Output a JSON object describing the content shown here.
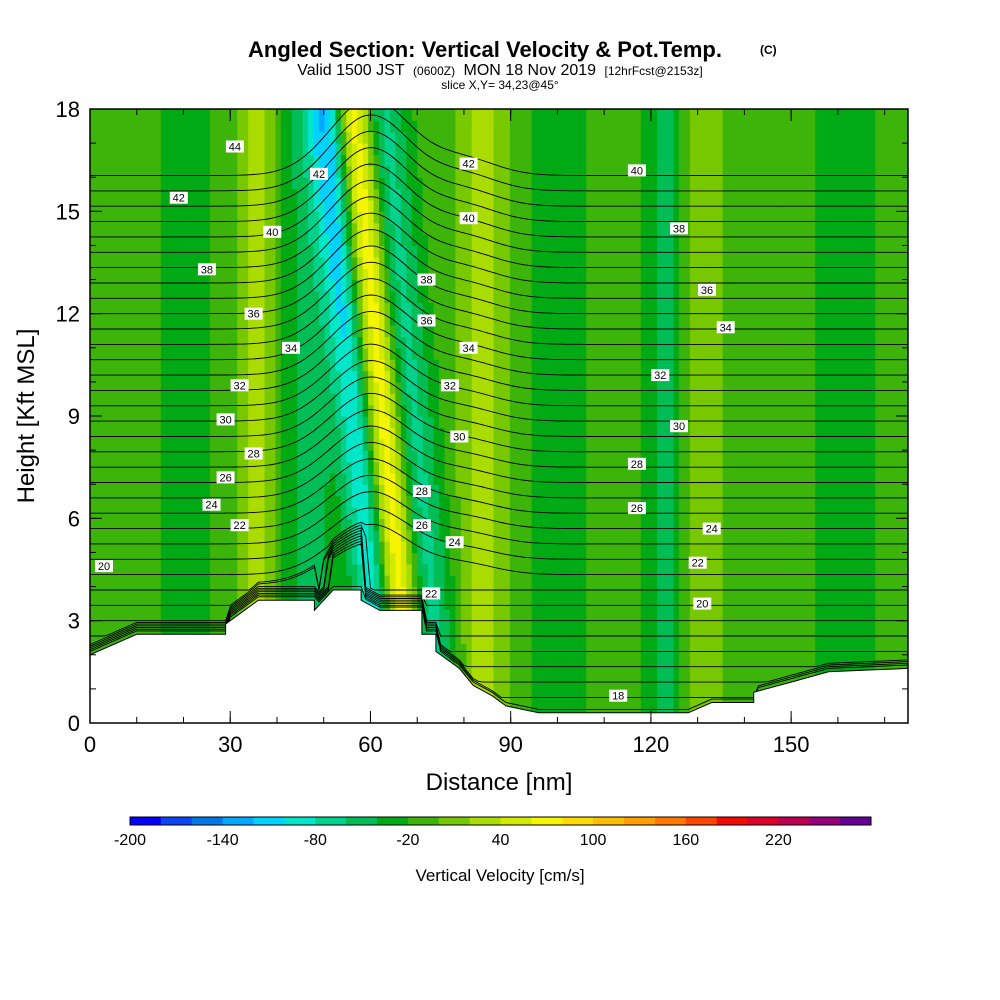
{
  "title": "Angled Section: Vertical Velocity & Pot.Temp.",
  "title_mark": "(C)",
  "subtitle_prefix": "Valid 1500 JST",
  "subtitle_z": "(0600Z)",
  "subtitle_main": "MON 18 Nov 2019",
  "subtitle_fcst": "[12hrFcst@2153z]",
  "slice_label": "slice X,Y= 34,23@45°",
  "chart_data": {
    "type": "heatmap",
    "xlabel": "Distance [nm]",
    "ylabel": "Height [Kft MSL]",
    "xlim": [
      0,
      175
    ],
    "ylim": [
      0,
      18
    ],
    "x_ticks": [
      "0",
      "30",
      "60",
      "90",
      "120",
      "150"
    ],
    "y_ticks": [
      "0",
      "3",
      "6",
      "9",
      "12",
      "15",
      "18"
    ],
    "grid": false,
    "colorbar": {
      "label": "Vertical Velocity [cm/s]",
      "min": -200,
      "max": 260,
      "step": 20,
      "tick_labels": [
        "-200",
        "-140",
        "-80",
        "-20",
        "40",
        "100",
        "160",
        "220"
      ],
      "tick_values": [
        -200,
        -140,
        -80,
        -20,
        40,
        100,
        160,
        220
      ],
      "colors": [
        "#0000ff",
        "#0a46f5",
        "#0078e6",
        "#00a8ff",
        "#00d2ff",
        "#00e6c8",
        "#00d28c",
        "#00be55",
        "#00aa14",
        "#3cb40a",
        "#78c800",
        "#aadc00",
        "#d2ea00",
        "#f5f500",
        "#ffdc00",
        "#ffbe00",
        "#ffa000",
        "#ff7800",
        "#ff4600",
        "#f50a00",
        "#dc0028",
        "#be0050",
        "#960078",
        "#640096"
      ]
    },
    "terrain": [
      [
        0,
        2.0
      ],
      [
        5,
        2.3
      ],
      [
        10,
        2.6
      ],
      [
        29,
        2.6
      ],
      [
        29,
        2.9
      ],
      [
        32,
        3.2
      ],
      [
        36,
        3.6
      ],
      [
        48,
        3.6
      ],
      [
        48,
        3.3
      ],
      [
        52,
        3.9
      ],
      [
        58,
        3.9
      ],
      [
        58,
        3.6
      ],
      [
        62,
        3.3
      ],
      [
        71,
        3.3
      ],
      [
        71,
        2.6
      ],
      [
        74,
        2.6
      ],
      [
        74,
        2.1
      ],
      [
        79,
        1.6
      ],
      [
        82,
        1.1
      ],
      [
        86,
        0.8
      ],
      [
        89,
        0.5
      ],
      [
        96,
        0.3
      ],
      [
        128,
        0.3
      ],
      [
        133,
        0.6
      ],
      [
        142,
        0.6
      ],
      [
        142,
        0.9
      ],
      [
        150,
        1.2
      ],
      [
        158,
        1.5
      ],
      [
        175,
        1.6
      ]
    ],
    "velocity_field": {
      "description_units": "cm/s",
      "background": -10,
      "features": [
        {
          "x": 62,
          "width": 4,
          "value": 100
        },
        {
          "x": 56,
          "width": 4,
          "value": -90
        },
        {
          "x": 47,
          "width": 6,
          "value": -40
        },
        {
          "x": 68,
          "width": 5,
          "value": -60
        },
        {
          "x": 36,
          "width": 4,
          "value": 40
        },
        {
          "x": 84,
          "width": 5,
          "value": 40
        },
        {
          "x": 130,
          "width": 5,
          "value": 35
        },
        {
          "x": 124,
          "width": 5,
          "value": -40
        },
        {
          "x": 20,
          "width": 5,
          "value": -30
        },
        {
          "x": 100,
          "width": 6,
          "value": -25
        },
        {
          "x": 162,
          "width": 6,
          "value": -30
        }
      ]
    },
    "isotherms": [
      {
        "label": "18",
        "position": [
          113,
          0.8
        ]
      },
      {
        "label": "20",
        "position": [
          3,
          4.6
        ]
      },
      {
        "label": "20",
        "position": [
          131,
          3.5
        ]
      },
      {
        "label": "22",
        "position": [
          32,
          5.8
        ]
      },
      {
        "label": "22",
        "position": [
          73,
          3.8
        ]
      },
      {
        "label": "22",
        "position": [
          130,
          4.7
        ]
      },
      {
        "label": "24",
        "position": [
          26,
          6.4
        ]
      },
      {
        "label": "24",
        "position": [
          78,
          5.3
        ]
      },
      {
        "label": "24",
        "position": [
          133,
          5.7
        ]
      },
      {
        "label": "26",
        "position": [
          29,
          7.2
        ]
      },
      {
        "label": "26",
        "position": [
          71,
          5.8
        ]
      },
      {
        "label": "26",
        "position": [
          117,
          6.3
        ]
      },
      {
        "label": "28",
        "position": [
          35,
          7.9
        ]
      },
      {
        "label": "28",
        "position": [
          71,
          6.8
        ]
      },
      {
        "label": "28",
        "position": [
          117,
          7.6
        ]
      },
      {
        "label": "30",
        "position": [
          29,
          8.9
        ]
      },
      {
        "label": "30",
        "position": [
          79,
          8.4
        ]
      },
      {
        "label": "30",
        "position": [
          126,
          8.7
        ]
      },
      {
        "label": "32",
        "position": [
          32,
          9.9
        ]
      },
      {
        "label": "32",
        "position": [
          77,
          9.9
        ]
      },
      {
        "label": "32",
        "position": [
          122,
          10.2
        ]
      },
      {
        "label": "34",
        "position": [
          43,
          11.0
        ]
      },
      {
        "label": "34",
        "position": [
          81,
          11.0
        ]
      },
      {
        "label": "34",
        "position": [
          136,
          11.6
        ]
      },
      {
        "label": "36",
        "position": [
          35,
          12.0
        ]
      },
      {
        "label": "36",
        "position": [
          72,
          11.8
        ]
      },
      {
        "label": "36",
        "position": [
          132,
          12.7
        ]
      },
      {
        "label": "38",
        "position": [
          25,
          13.3
        ]
      },
      {
        "label": "38",
        "position": [
          72,
          13.0
        ]
      },
      {
        "label": "38",
        "position": [
          126,
          14.5
        ]
      },
      {
        "label": "40",
        "position": [
          39,
          14.4
        ]
      },
      {
        "label": "40",
        "position": [
          81,
          14.8
        ]
      },
      {
        "label": "40",
        "position": [
          117,
          16.2
        ]
      },
      {
        "label": "42",
        "position": [
          19,
          15.4
        ]
      },
      {
        "label": "42",
        "position": [
          49,
          16.1
        ]
      },
      {
        "label": "42",
        "position": [
          81,
          16.4
        ]
      },
      {
        "label": "44",
        "position": [
          31,
          16.9
        ]
      }
    ]
  }
}
